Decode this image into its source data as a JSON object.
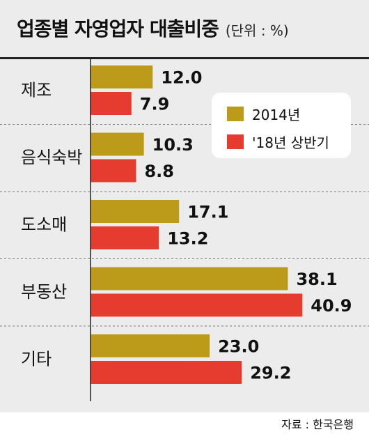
{
  "chart_data": {
    "type": "bar",
    "orientation": "horizontal",
    "title": "업종별 자영업자 대출비중",
    "unit_label": "(단위 : %)",
    "categories": [
      "제조",
      "음식숙박",
      "도소매",
      "부동산",
      "기타"
    ],
    "series": [
      {
        "name": "2014년",
        "color": "#bd9b1a",
        "values": [
          12.0,
          10.3,
          17.1,
          38.1,
          23.0
        ],
        "labels": [
          "12.0",
          "10.3",
          "17.1",
          "38.1",
          "23.0"
        ]
      },
      {
        "name": "'18년 상반기",
        "color": "#e63c30",
        "values": [
          7.9,
          8.8,
          13.2,
          40.9,
          29.2
        ],
        "labels": [
          "7.9",
          "8.8",
          "13.2",
          "40.9",
          "29.2"
        ]
      }
    ],
    "xlim": [
      0,
      55
    ],
    "legend_position": "top-right",
    "grid": false,
    "source": "자료 : 한국은행"
  }
}
